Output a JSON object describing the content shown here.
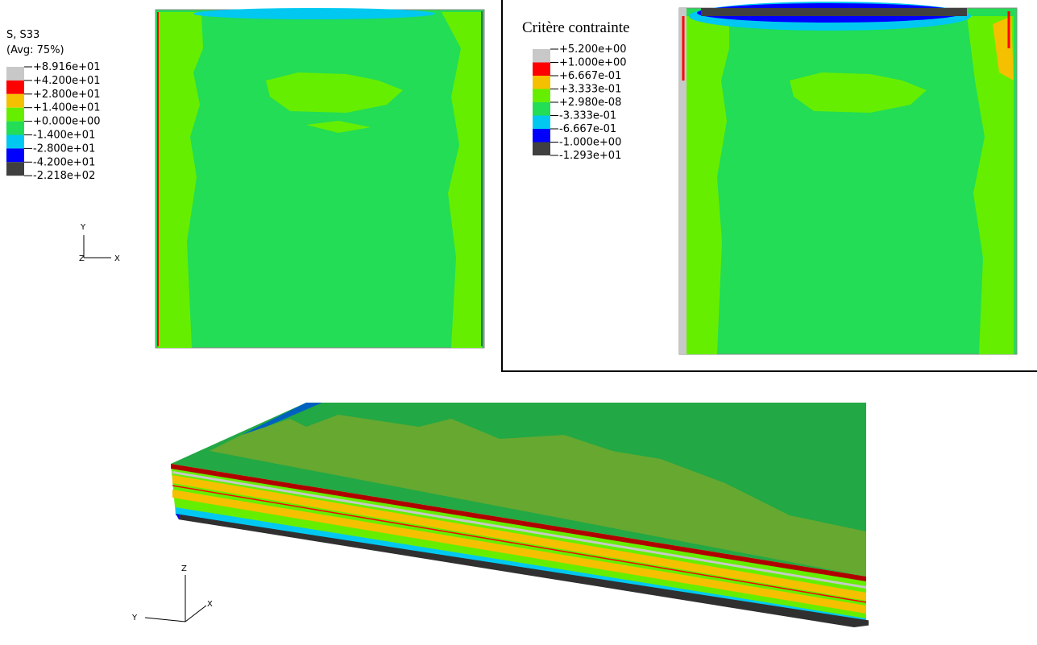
{
  "legend_left": {
    "title": "S, S33",
    "subtitle": "(Avg: 75%)",
    "labels": [
      "+8.916e+01",
      "+4.200e+01",
      "+2.800e+01",
      "+1.400e+01",
      "+0.000e+00",
      "-1.400e+01",
      "-2.800e+01",
      "-4.200e+01",
      "-2.218e+02"
    ],
    "colors": [
      "#c8c8c8",
      "#ff0000",
      "#f5c000",
      "#66ee00",
      "#22dd55",
      "#00c8f0",
      "#0000ff",
      "#404040"
    ]
  },
  "legend_right": {
    "title": "Critère contrainte",
    "labels": [
      "+5.200e+00",
      "+1.000e+00",
      "+6.667e-01",
      "+3.333e-01",
      "+2.980e-08",
      "-3.333e-01",
      "-6.667e-01",
      "-1.000e+00",
      "-1.293e+01"
    ],
    "colors": [
      "#c8c8c8",
      "#ff0000",
      "#f5c000",
      "#66ee00",
      "#22dd55",
      "#00c8f0",
      "#0000ff",
      "#404040"
    ]
  },
  "triad_top": {
    "y": "Y",
    "z": "Z",
    "x": "X"
  },
  "triad_bottom": {
    "z": "Z",
    "y": "Y",
    "x": "X"
  }
}
